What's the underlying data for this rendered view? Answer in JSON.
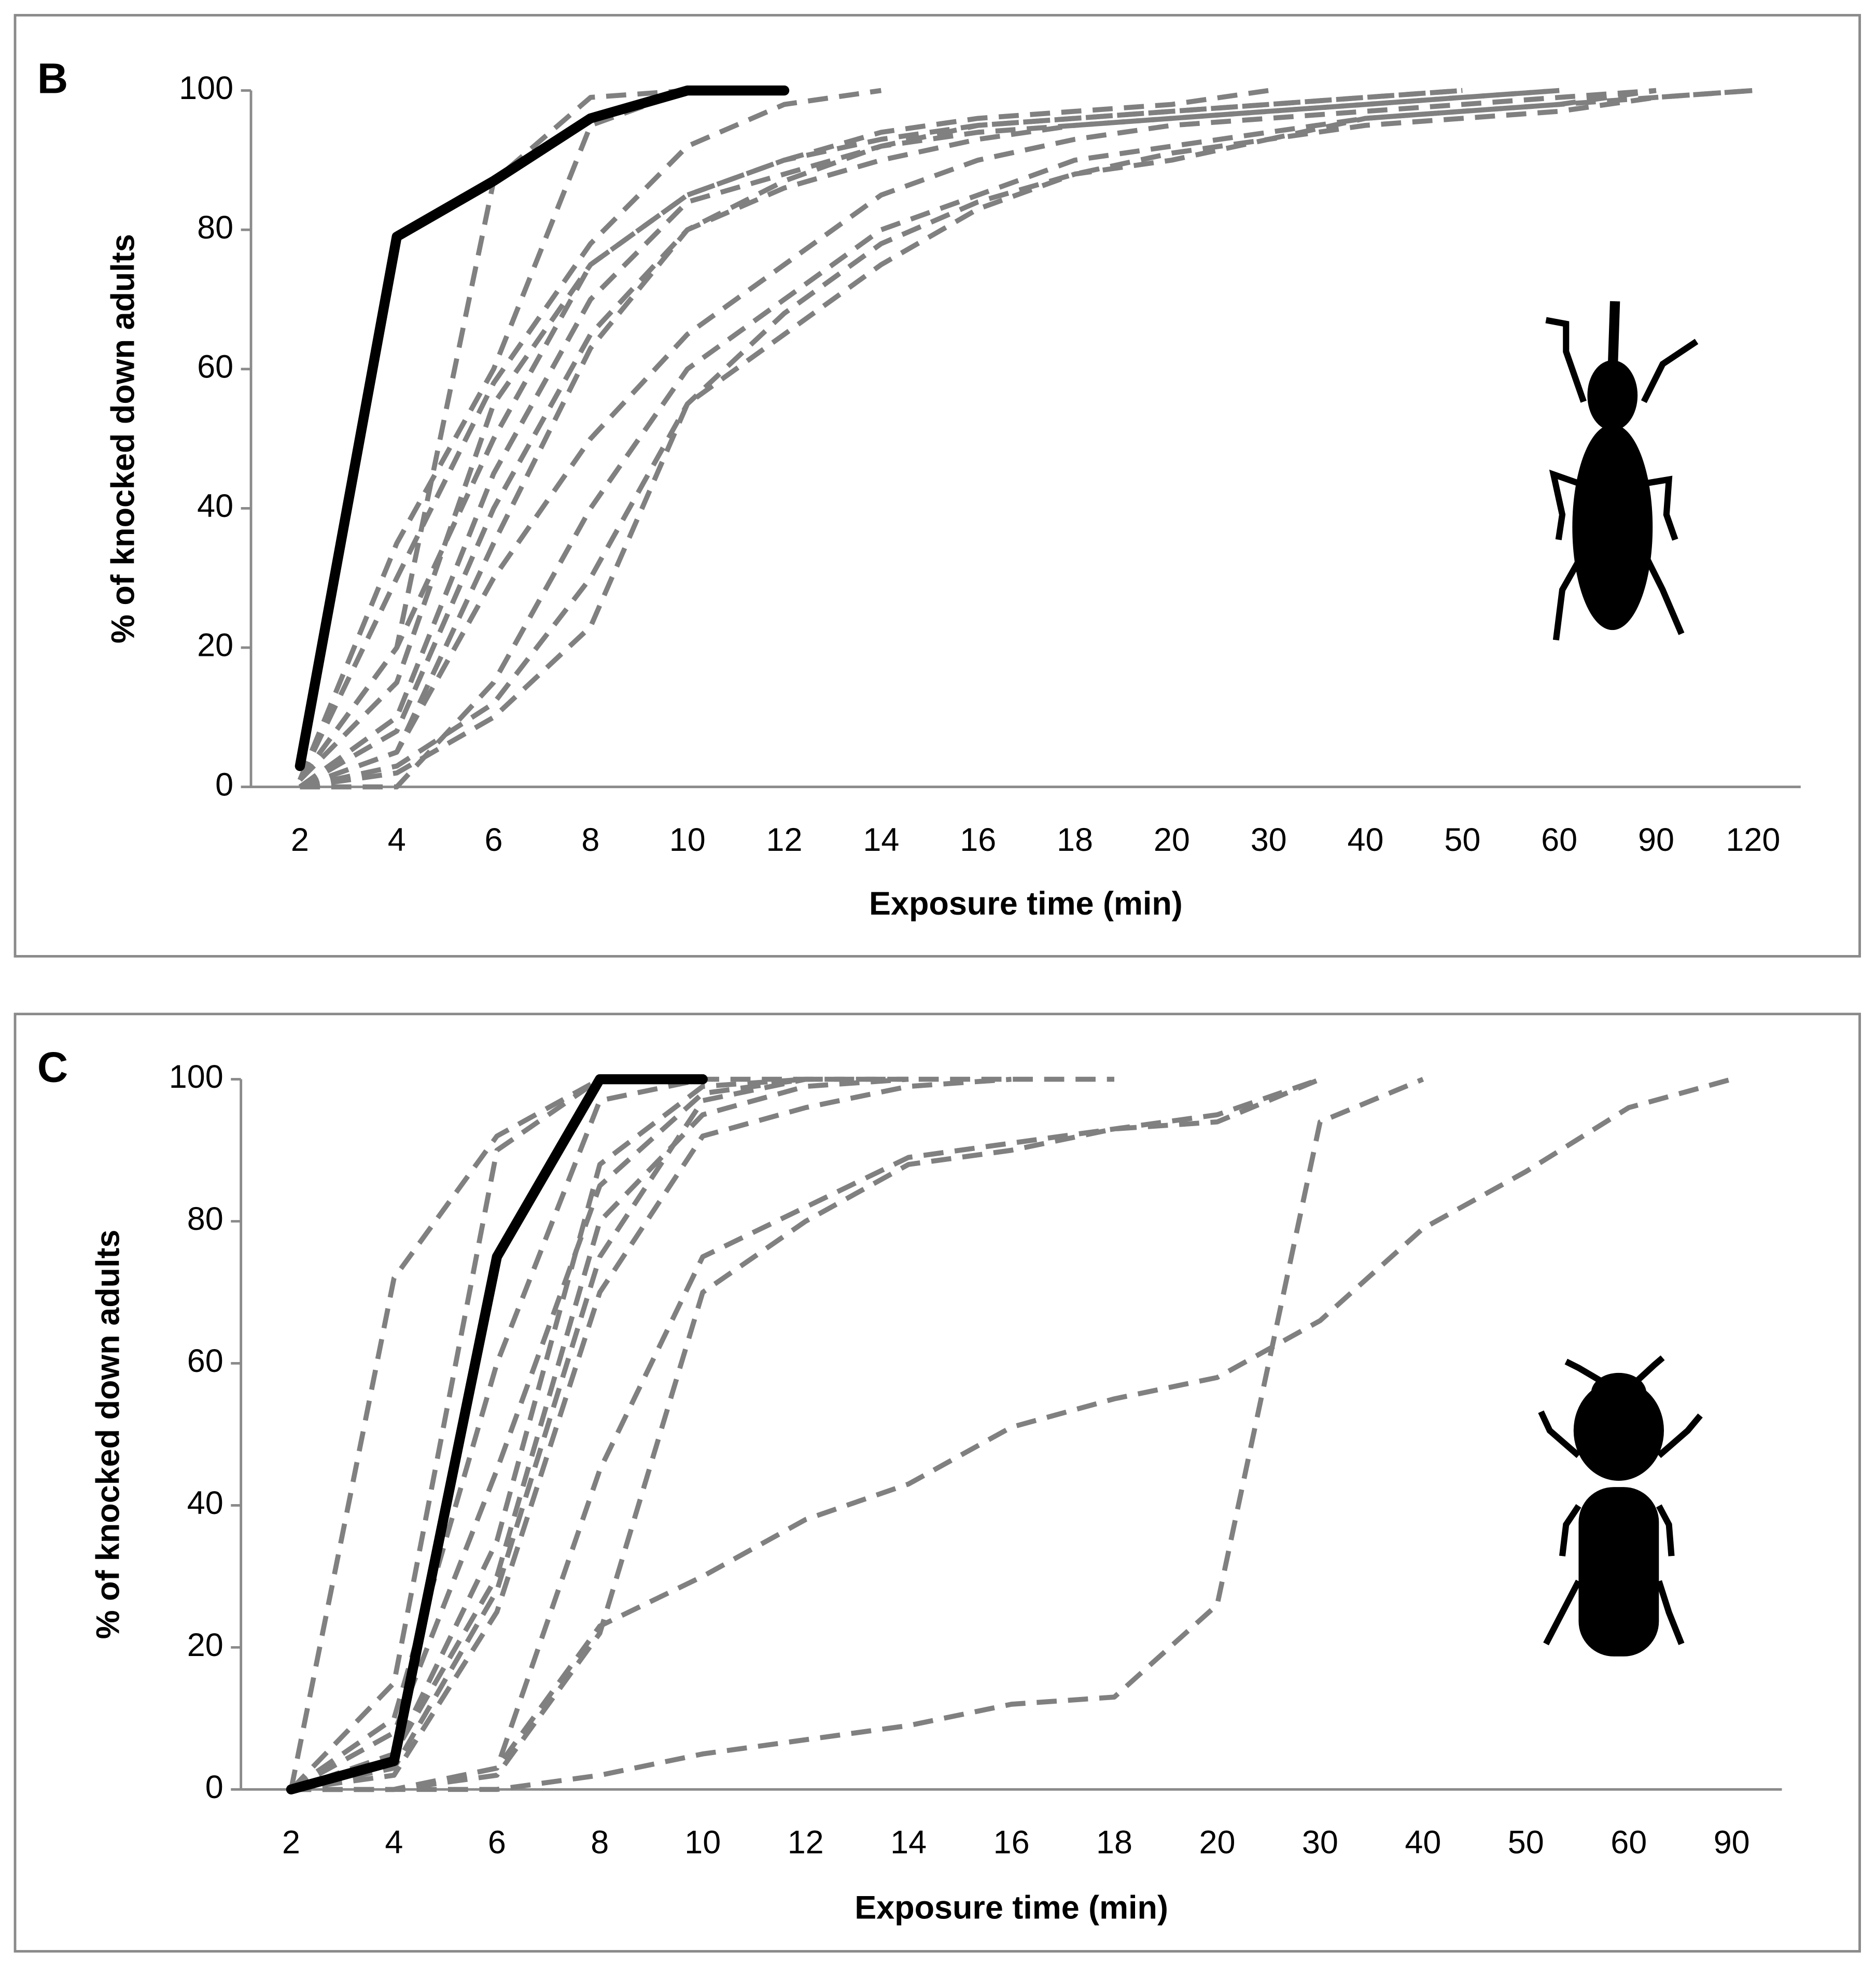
{
  "chart_data": [
    {
      "type": "line",
      "title": "B",
      "x_label": "Exposure time (min)",
      "y_label": "% of knocked down adults",
      "categories": [
        2,
        4,
        6,
        8,
        10,
        12,
        14,
        16,
        18,
        20,
        30,
        40,
        50,
        60,
        90,
        120
      ],
      "ylim": [
        0,
        100
      ],
      "yticks": [
        0,
        20,
        40,
        60,
        80,
        100
      ],
      "series": [
        {
          "color": "#808080",
          "values": [
            1,
            20,
            87,
            99,
            100,
            100,
            null,
            null,
            null,
            null,
            null,
            null,
            null,
            null,
            null,
            null
          ]
        },
        {
          "color": "#808080",
          "values": [
            1,
            35,
            60,
            95,
            100,
            100,
            null,
            null,
            null,
            null,
            null,
            null,
            null,
            null,
            null,
            null
          ]
        },
        {
          "color": "#808080",
          "values": [
            1,
            30,
            58,
            78,
            92,
            98,
            100,
            null,
            null,
            null,
            null,
            null,
            null,
            null,
            null,
            null
          ]
        },
        {
          "color": "#808080",
          "values": [
            1,
            20,
            50,
            75,
            85,
            90,
            94,
            96,
            97,
            98,
            100,
            null,
            null,
            null,
            null,
            null
          ]
        },
        {
          "color": "#808080",
          "values": [
            0,
            10,
            45,
            70,
            84,
            88,
            92,
            94,
            95,
            96,
            97,
            98,
            99,
            100,
            null,
            null
          ]
        },
        {
          "color": "#808080",
          "values": [
            0,
            8,
            40,
            65,
            80,
            86,
            90,
            93,
            95,
            96,
            97,
            98,
            99,
            100,
            null,
            null
          ]
        },
        {
          "color": "#808080",
          "values": [
            0,
            5,
            30,
            50,
            65,
            75,
            85,
            90,
            93,
            95,
            96,
            97,
            98,
            99,
            100,
            null
          ]
        },
        {
          "color": "#808080",
          "values": [
            0,
            0,
            15,
            40,
            60,
            70,
            80,
            85,
            90,
            92,
            94,
            96,
            97,
            98,
            100,
            null
          ]
        },
        {
          "color": "#808080",
          "values": [
            0,
            3,
            12,
            30,
            55,
            68,
            78,
            84,
            88,
            91,
            93,
            96,
            97,
            98,
            99,
            100
          ]
        },
        {
          "color": "#808080",
          "values": [
            0,
            2,
            10,
            23,
            55,
            65,
            75,
            83,
            88,
            90,
            93,
            95,
            96,
            97,
            99,
            100
          ]
        },
        {
          "color": "#808080",
          "values": [
            1,
            15,
            55,
            75,
            85,
            90,
            93,
            95,
            96,
            97,
            98,
            99,
            100,
            null,
            null,
            null
          ]
        },
        {
          "color": "#808080",
          "values": [
            0,
            5,
            35,
            63,
            80,
            87,
            92,
            95,
            96,
            97,
            98,
            99,
            100,
            null,
            null,
            null
          ]
        },
        {
          "color": "#000000",
          "values": [
            3,
            79,
            87,
            96,
            100,
            100,
            null,
            null,
            null,
            null,
            null,
            null,
            null,
            null,
            null,
            null
          ]
        }
      ]
    },
    {
      "type": "line",
      "title": "C",
      "x_label": "Exposure time (min)",
      "y_label": "% of knocked down adults",
      "categories": [
        2,
        4,
        6,
        8,
        10,
        12,
        14,
        16,
        18,
        20,
        30,
        40,
        50,
        60,
        90
      ],
      "ylim": [
        0,
        100
      ],
      "yticks": [
        0,
        20,
        40,
        60,
        80,
        100
      ],
      "series": [
        {
          "color": "#808080",
          "values": [
            0,
            72,
            92,
            100,
            100,
            null,
            null,
            null,
            null,
            null,
            null,
            null,
            null,
            null,
            null
          ]
        },
        {
          "color": "#808080",
          "values": [
            0,
            15,
            90,
            100,
            100,
            null,
            null,
            null,
            null,
            null,
            null,
            null,
            null,
            null,
            null
          ]
        },
        {
          "color": "#808080",
          "values": [
            0,
            8,
            45,
            85,
            98,
            100,
            100,
            null,
            null,
            null,
            null,
            null,
            null,
            null,
            null
          ]
        },
        {
          "color": "#808080",
          "values": [
            0,
            5,
            30,
            80,
            95,
            99,
            100,
            null,
            null,
            null,
            null,
            null,
            null,
            null,
            null
          ]
        },
        {
          "color": "#808080",
          "values": [
            0,
            3,
            28,
            75,
            97,
            100,
            null,
            null,
            null,
            null,
            null,
            null,
            null,
            null,
            null
          ]
        },
        {
          "color": "#808080",
          "values": [
            0,
            2,
            25,
            70,
            92,
            96,
            99,
            100,
            null,
            null,
            null,
            null,
            null,
            null,
            null
          ]
        },
        {
          "color": "#808080",
          "values": [
            0,
            0,
            3,
            45,
            75,
            82,
            89,
            91,
            93,
            95,
            100,
            null,
            null,
            null,
            null
          ]
        },
        {
          "color": "#808080",
          "values": [
            0,
            0,
            2,
            22,
            70,
            80,
            88,
            90,
            93,
            94,
            100,
            null,
            null,
            null,
            null
          ]
        },
        {
          "color": "#808080",
          "values": [
            0,
            0,
            0,
            2,
            5,
            7,
            9,
            12,
            13,
            26,
            94,
            100,
            null,
            null,
            null
          ]
        },
        {
          "color": "#808080",
          "values": [
            0,
            0,
            3,
            23,
            30,
            38,
            43,
            51,
            55,
            58,
            66,
            79,
            87,
            96,
            100
          ]
        },
        {
          "color": "#808080",
          "values": [
            0,
            10,
            60,
            97,
            100,
            100,
            100,
            100,
            100,
            null,
            null,
            null,
            null,
            null,
            null
          ]
        },
        {
          "color": "#808080",
          "values": [
            0,
            5,
            35,
            88,
            99,
            100,
            null,
            null,
            null,
            null,
            null,
            null,
            null,
            null,
            null
          ]
        },
        {
          "color": "#000000",
          "values": [
            0,
            4,
            75,
            100,
            100,
            null,
            null,
            null,
            null,
            null,
            null,
            null,
            null,
            null,
            null
          ]
        }
      ]
    }
  ]
}
